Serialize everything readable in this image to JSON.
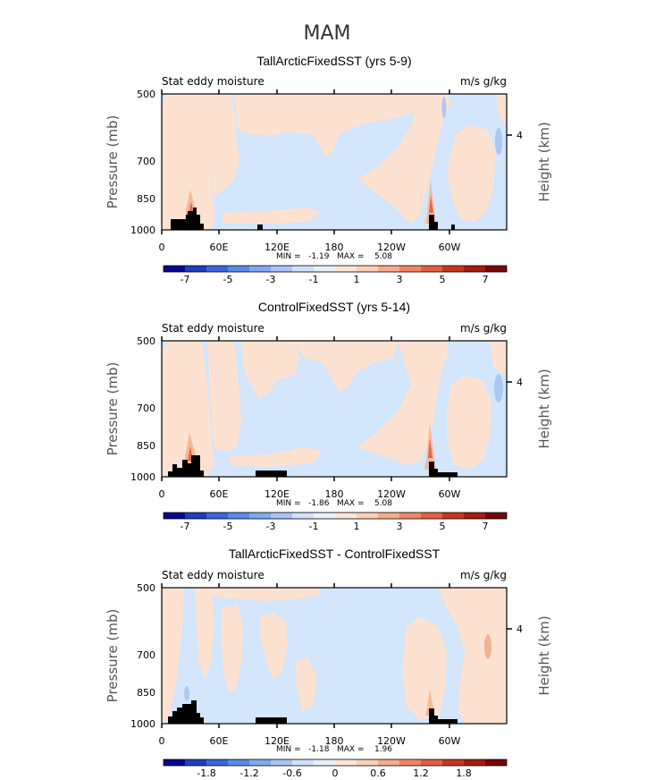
{
  "figure": {
    "season": "MAM",
    "colors": {
      "ink": "#111111",
      "ridge": "#000000",
      "blueTint": "#d3e6fb",
      "peachTint": "#fde2d1"
    }
  },
  "chart_data": [
    {
      "type": "heatmap",
      "title": "TallArcticFixedSST (yrs 5-9)",
      "left_label": "Stat eddy moisture",
      "units": "m/s g/kg",
      "xlabel": "",
      "ylabel": "Pressure (mb)",
      "ylabel_right": "Height (km)",
      "x_ticks": [
        "0",
        "60E",
        "120E",
        "180",
        "120W",
        "60W"
      ],
      "y_ticks": [
        "500",
        "700",
        "850",
        "1000"
      ],
      "right_ticks": [
        "4"
      ],
      "min_max_text": "MIN =   -1.19   MAX =    5.08",
      "colorbar_labels": [
        "-7",
        "-5",
        "-3",
        "-1",
        "1",
        "3",
        "5",
        "7"
      ],
      "field": "A"
    },
    {
      "type": "heatmap",
      "title": "ControlFixedSST (yrs 5-14)",
      "left_label": "Stat eddy moisture",
      "units": "m/s g/kg",
      "xlabel": "",
      "ylabel": "Pressure (mb)",
      "ylabel_right": "Height (km)",
      "x_ticks": [
        "0",
        "60E",
        "120E",
        "180",
        "120W",
        "60W"
      ],
      "y_ticks": [
        "500",
        "700",
        "850",
        "1000"
      ],
      "right_ticks": [
        "4"
      ],
      "min_max_text": "MIN =   -1.86   MAX =    5.08",
      "colorbar_labels": [
        "-7",
        "-5",
        "-3",
        "-1",
        "1",
        "3",
        "5",
        "7"
      ],
      "field": "B"
    },
    {
      "type": "heatmap",
      "title": "TallArcticFixedSST - ControlFixedSST",
      "left_label": "Stat eddy moisture",
      "units": "m/s g/kg",
      "xlabel": "",
      "ylabel": "Pressure (mb)",
      "ylabel_right": "Height (km)",
      "x_ticks": [
        "0",
        "60E",
        "120E",
        "180",
        "120W",
        "60W"
      ],
      "y_ticks": [
        "500",
        "700",
        "850",
        "1000"
      ],
      "right_ticks": [
        "4"
      ],
      "min_max_text": "MIN =   -1.18   MAX =    1.96",
      "colorbar_labels": [
        "-1.8",
        "-1.2",
        "-0.6",
        "0",
        "0.6",
        "1.2",
        "1.8"
      ],
      "field": "C"
    }
  ]
}
